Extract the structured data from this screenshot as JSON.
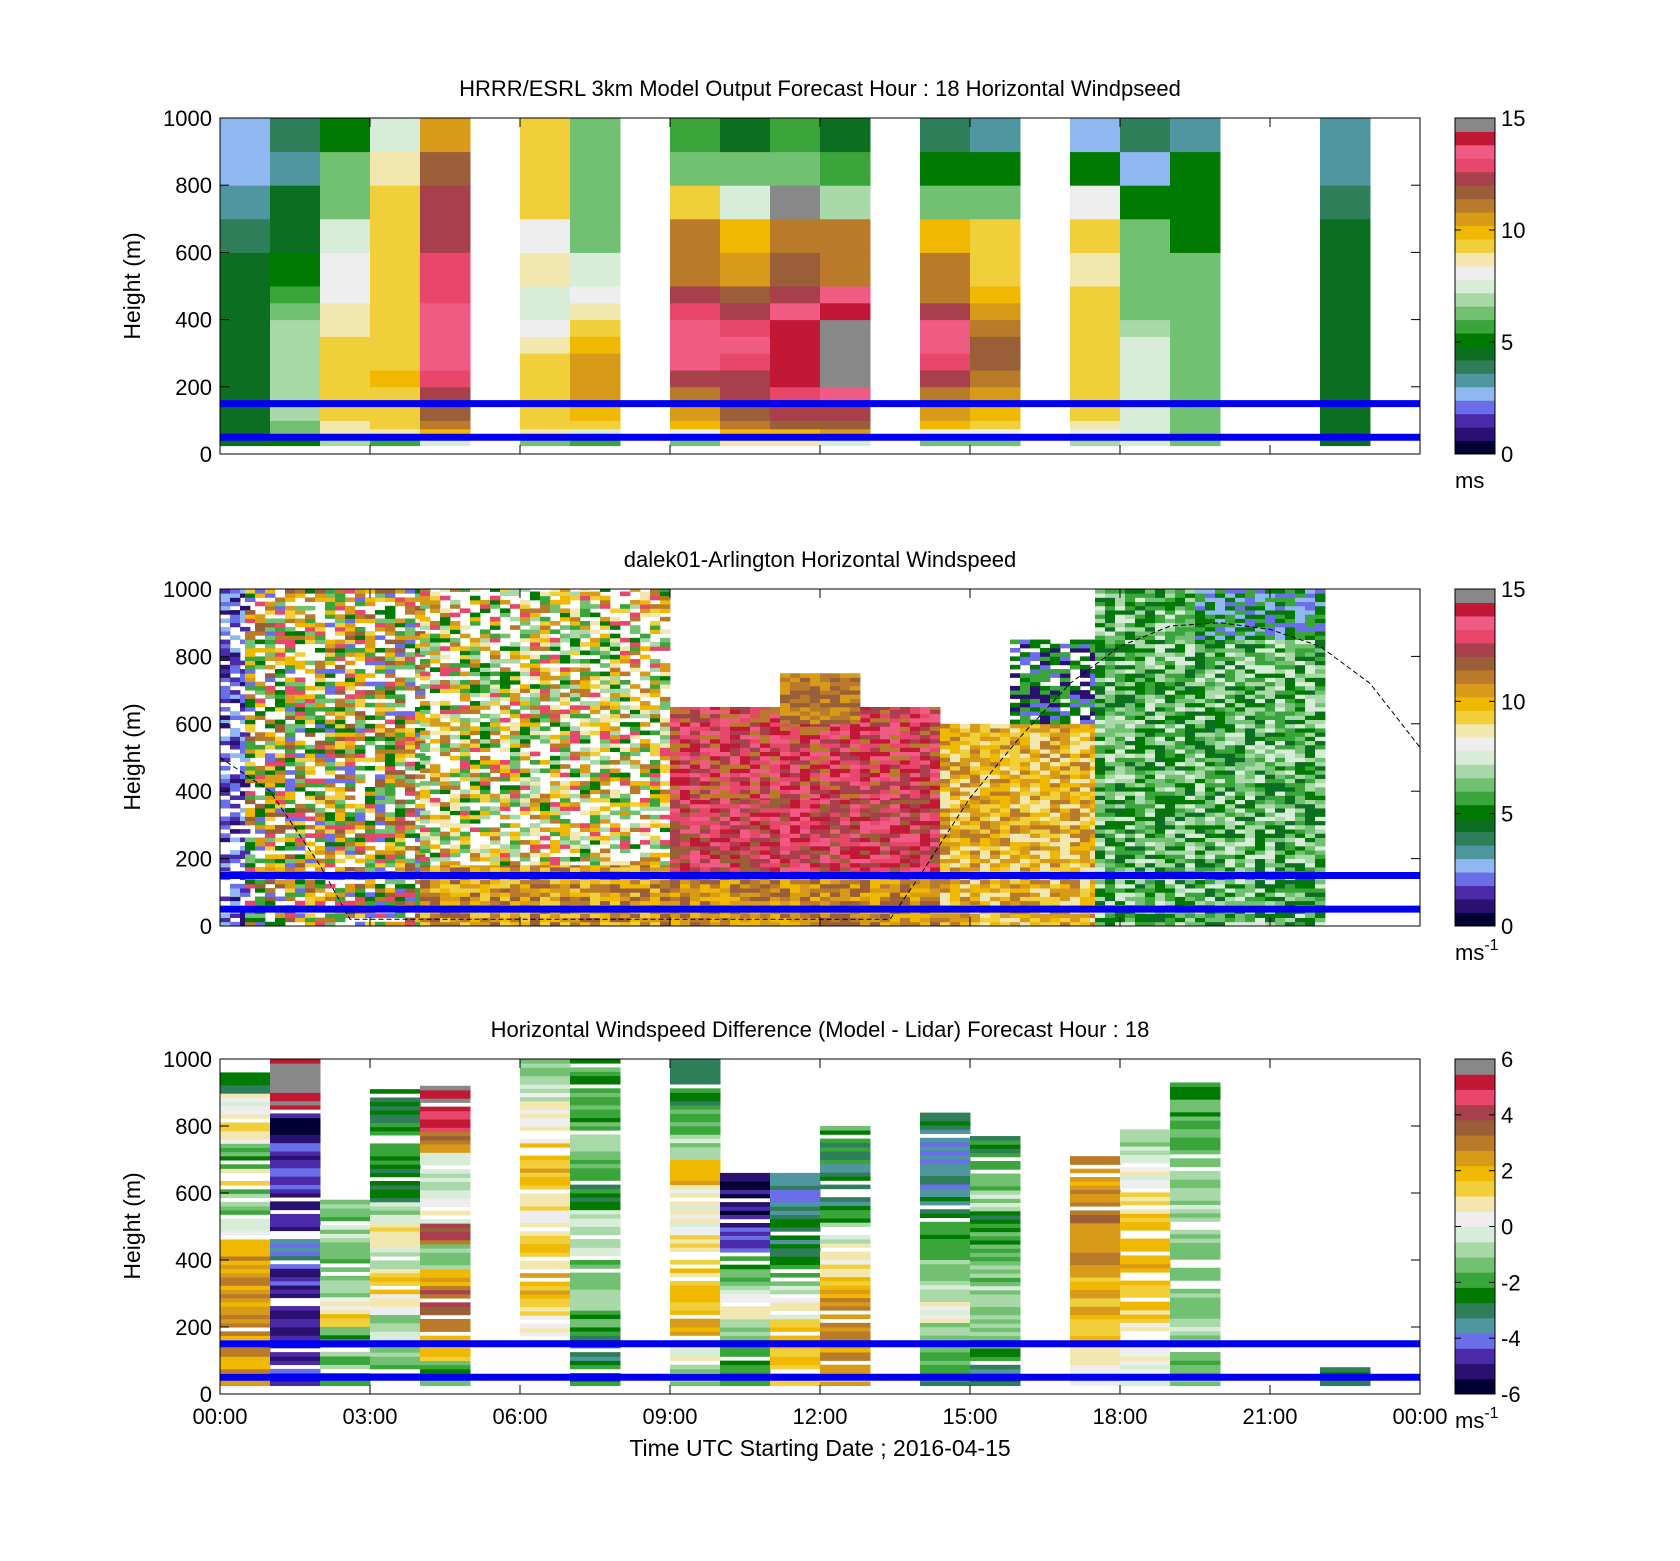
{
  "figure": {
    "x_axis_label": "Time UTC  Starting Date ; 2016-04-15",
    "x_tick_labels": [
      "00:00",
      "03:00",
      "06:00",
      "09:00",
      "12:00",
      "15:00",
      "18:00",
      "21:00",
      "00:00"
    ]
  },
  "colors": {
    "reference_lines": "#0000ee",
    "speed_colormap": [
      "#000033",
      "#2a1070",
      "#4b2aa8",
      "#6a6ee8",
      "#8fb8f0",
      "#4f96a0",
      "#2f7e5a",
      "#0b6e20",
      "#007a00",
      "#3aa53a",
      "#72c072",
      "#a9d9a9",
      "#d8edd8",
      "#eeeeee",
      "#f3e7b0",
      "#f1cf3a",
      "#f0b800",
      "#d79b19",
      "#b97b2a",
      "#9a5e38",
      "#a7404a",
      "#e8466b",
      "#ef5b82",
      "#c21836",
      "#888888"
    ],
    "difference_colormap": [
      "#000033",
      "#2a1070",
      "#4b2aa8",
      "#6a6ee8",
      "#4f96a0",
      "#2f7e5a",
      "#007a00",
      "#3aa53a",
      "#72c072",
      "#a9d9a9",
      "#d8edd8",
      "#eeeeee",
      "#f3e7b0",
      "#f1cf3a",
      "#f0b800",
      "#d79b19",
      "#b97b2a",
      "#9a5e38",
      "#a7404a",
      "#e8466b",
      "#c21836",
      "#888888"
    ]
  },
  "chart_data": [
    {
      "type": "heatmap",
      "title": "HRRR/ESRL 3km Model Output   Forecast Hour : 18 Horizontal Windpseed",
      "xlabel": "",
      "ylabel": "Height (m)",
      "xlim": [
        0,
        24
      ],
      "ylim": [
        0,
        1000
      ],
      "y_ticks": [
        0,
        200,
        400,
        600,
        800,
        1000
      ],
      "colorbar": {
        "ticks": [
          "0",
          "5",
          "10",
          "15"
        ],
        "range": [
          0,
          15
        ],
        "unit_label": "ms",
        "unit_superscript": "",
        "colormap": "speed"
      },
      "reference_lines_m": [
        50,
        150
      ],
      "columns_hour": [
        0,
        1,
        2,
        3,
        4,
        6,
        7,
        9,
        10,
        11,
        12,
        14,
        15,
        17,
        18,
        19,
        22
      ],
      "levels_m": [
        25,
        50,
        75,
        100,
        150,
        200,
        250,
        300,
        350,
        400,
        450,
        500,
        600,
        700,
        800,
        900
      ],
      "values": [
        [
          4.5,
          4.5,
          4.5,
          4.5,
          4.5,
          4.5,
          4.5,
          4.5,
          4.5,
          4.6,
          4.5,
          4.4,
          3.9,
          3.3,
          2.7,
          2.4
        ],
        [
          5.2,
          6.0,
          6.5,
          6.8,
          7.0,
          7.0,
          7.0,
          7.0,
          7.0,
          6.5,
          5.6,
          4.9,
          4.5,
          4.5,
          3.2,
          3.6
        ],
        [
          7.0,
          8.5,
          9.0,
          9.1,
          9.3,
          9.5,
          9.5,
          9.5,
          9.0,
          8.5,
          8.0,
          8.0,
          7.5,
          6.5,
          6.0,
          5.0
        ],
        [
          5.9,
          8.6,
          9.5,
          9.6,
          9.6,
          9.7,
          9.5,
          9.4,
          9.5,
          9.6,
          9.5,
          9.4,
          9.6,
          9.2,
          8.5,
          7.5
        ],
        [
          7.5,
          10.0,
          11.0,
          11.8,
          12.6,
          13.3,
          14.0,
          13.9,
          13.8,
          13.6,
          13.3,
          13.0,
          12.7,
          12.4,
          12.0,
          10.7
        ],
        [
          6.5,
          8.5,
          9.5,
          9.4,
          9.3,
          9.3,
          9.2,
          8.8,
          8.2,
          7.5,
          7.8,
          8.5,
          8.0,
          9.1,
          9.3,
          9.1
        ],
        [
          5.5,
          7.5,
          9.4,
          9.9,
          10.5,
          10.6,
          10.5,
          10.3,
          9.1,
          8.6,
          7.9,
          7.4,
          6.5,
          6.0,
          6.0,
          6.0
        ],
        [
          6.5,
          8.0,
          9.9,
          10.6,
          11.5,
          12.6,
          13.6,
          13.7,
          13.6,
          13.4,
          12.5,
          11.5,
          11.0,
          9.5,
          6.5,
          5.6
        ],
        [
          8.5,
          10.2,
          11.0,
          12.0,
          12.3,
          12.5,
          13.0,
          13.5,
          13.4,
          12.5,
          11.6,
          10.7,
          10.2,
          7.8,
          6.2,
          4.6
        ],
        [
          8.9,
          10.3,
          11.8,
          12.4,
          13.2,
          14.1,
          14.5,
          14.5,
          14.5,
          13.6,
          12.7,
          11.8,
          11.5,
          14.9,
          6.0,
          5.6
        ],
        [
          7.5,
          10.5,
          12.0,
          12.8,
          13.5,
          14.8,
          14.8,
          14.9,
          14.9,
          14.4,
          13.9,
          11.5,
          11.0,
          7.0,
          5.5,
          4.6
        ],
        [
          6.5,
          8.3,
          9.9,
          10.8,
          11.5,
          12.4,
          13.3,
          13.6,
          13.5,
          12.5,
          11.4,
          11.0,
          10.0,
          6.5,
          4.9,
          3.7
        ],
        [
          6.5,
          8.1,
          9.2,
          10.0,
          10.8,
          11.2,
          11.6,
          11.6,
          11.2,
          10.6,
          10.0,
          9.6,
          9.6,
          6.2,
          5.0,
          3.2
        ],
        [
          7.0,
          8.3,
          8.9,
          9.3,
          9.5,
          9.5,
          9.5,
          9.6,
          9.6,
          9.5,
          9.2,
          9.0,
          9.4,
          8.0,
          5.3,
          2.6
        ],
        [
          7.3,
          7.5,
          7.5,
          7.5,
          7.5,
          7.6,
          7.5,
          7.3,
          7.0,
          6.5,
          6.2,
          6.0,
          6.0,
          5.0,
          2.8,
          3.8
        ],
        [
          6.0,
          6.5,
          6.5,
          6.5,
          6.5,
          6.5,
          6.3,
          6.0,
          6.0,
          6.0,
          6.0,
          6.0,
          5.0,
          5.0,
          5.0,
          3.2
        ],
        [
          4.5,
          4.5,
          4.5,
          4.5,
          4.5,
          4.5,
          4.5,
          4.5,
          4.5,
          4.5,
          4.5,
          4.5,
          4.4,
          4.0,
          3.3,
          3.0
        ]
      ]
    },
    {
      "type": "heatmap",
      "title": "dalek01-Arlington  Horizontal Windspeed",
      "xlabel": "",
      "ylabel": "Height (m)",
      "xlim": [
        0,
        24
      ],
      "ylim": [
        0,
        1000
      ],
      "y_ticks": [
        0,
        200,
        400,
        600,
        800,
        1000
      ],
      "colorbar": {
        "ticks": [
          "0",
          "5",
          "10",
          "15"
        ],
        "range": [
          0,
          15
        ],
        "unit_label": "ms",
        "unit_superscript": "-1",
        "colormap": "speed"
      },
      "reference_lines_m": [
        50,
        150
      ],
      "dashed_curve": [
        [
          0,
          500
        ],
        [
          1,
          400
        ],
        [
          2,
          180
        ],
        [
          2.6,
          20
        ],
        [
          13.4,
          20
        ],
        [
          14,
          150
        ],
        [
          15,
          380
        ],
        [
          16,
          560
        ],
        [
          17,
          720
        ],
        [
          18,
          830
        ],
        [
          19,
          890
        ],
        [
          20,
          900
        ],
        [
          21,
          880
        ],
        [
          22,
          830
        ],
        [
          23,
          720
        ],
        [
          24,
          530
        ]
      ],
      "data_extent_hours": [
        0,
        22
      ],
      "hour_ranges": [
        {
          "hours": [
            0.0,
            0.5
          ],
          "bottom_m": 0,
          "top_m": 1000,
          "color_mix": [
            "#2a1070",
            "#4b2aa8",
            "#6a6ee8",
            "#8fb8f0",
            "#ffffff",
            "#ffffff"
          ]
        },
        {
          "hours": [
            0.5,
            4.0
          ],
          "bottom_m": 0,
          "top_m": 1000,
          "color_mix": [
            "#ffffff",
            "#ffffff",
            "#ffffff",
            "#b97b2a",
            "#9a5e38",
            "#d79b19",
            "#f0b800",
            "#f1cf3a",
            "#3aa53a",
            "#72c072",
            "#007a00",
            "#e8466b",
            "#6a6ee8"
          ]
        },
        {
          "hours": [
            4.0,
            9.0
          ],
          "bottom_m": 180,
          "top_m": 1000,
          "color_mix": [
            "#ffffff",
            "#ffffff",
            "#ffffff",
            "#ffffff",
            "#ffffff",
            "#f0b800",
            "#f1cf3a",
            "#f3e7b0",
            "#d79b19",
            "#3aa53a",
            "#72c072",
            "#007a00",
            "#b97b2a",
            "#e8466b",
            "#a9d9a9"
          ]
        },
        {
          "hours": [
            4.0,
            9.0
          ],
          "bottom_m": 0,
          "top_m": 180,
          "color_mix": [
            "#d79b19",
            "#b97b2a",
            "#f0b800",
            "#9a5e38",
            "#f1cf3a"
          ]
        },
        {
          "hours": [
            8.8,
            14.4
          ],
          "bottom_m": 0,
          "top_m": 150,
          "color_mix": [
            "#d79b19",
            "#b97b2a",
            "#f0b800",
            "#9a5e38"
          ]
        },
        {
          "hours": [
            9.0,
            14.4
          ],
          "bottom_m": 150,
          "top_m": 380,
          "color_mix": [
            "#e8466b",
            "#ef5b82",
            "#c21836",
            "#a7404a",
            "#9a5e38"
          ]
        },
        {
          "hours": [
            9.0,
            14.4
          ],
          "bottom_m": 380,
          "top_m": 650,
          "color_mix": [
            "#ef5b82",
            "#e8466b",
            "#c21836",
            "#a7404a",
            "#b97b2a"
          ]
        },
        {
          "hours": [
            11.2,
            12.8
          ],
          "bottom_m": 600,
          "top_m": 750,
          "color_mix": [
            "#b97b2a",
            "#9a5e38",
            "#d79b19"
          ]
        },
        {
          "hours": [
            14.4,
            17.5
          ],
          "bottom_m": 0,
          "top_m": 600,
          "color_mix": [
            "#f0b800",
            "#d79b19",
            "#f1cf3a",
            "#b97b2a",
            "#f3e7b0"
          ]
        },
        {
          "hours": [
            15.8,
            17.5
          ],
          "bottom_m": 600,
          "top_m": 850,
          "color_mix": [
            "#007a00",
            "#3aa53a",
            "#6a6ee8",
            "#2a1070",
            "#ffffff"
          ]
        },
        {
          "hours": [
            17.5,
            22.0
          ],
          "bottom_m": 0,
          "top_m": 1000,
          "color_mix": [
            "#007a00",
            "#3aa53a",
            "#72c072",
            "#a9d9a9",
            "#d8edd8",
            "#0b6e20"
          ]
        },
        {
          "hours": [
            19.5,
            22.0
          ],
          "bottom_m": 850,
          "top_m": 1000,
          "color_mix": [
            "#6a6ee8",
            "#8fb8f0",
            "#007a00",
            "#3aa53a"
          ]
        }
      ]
    },
    {
      "type": "heatmap",
      "title": "Horizontal Windspeed Difference (Model - Lidar) Forecast Hour : 18",
      "xlabel": "Time UTC  Starting Date ; 2016-04-15",
      "ylabel": "Height (m)",
      "xlim": [
        0,
        24
      ],
      "ylim": [
        0,
        1000
      ],
      "y_ticks": [
        0,
        200,
        400,
        600,
        800,
        1000
      ],
      "colorbar": {
        "ticks": [
          "-6",
          "-4",
          "-2",
          "0",
          "2",
          "4",
          "6"
        ],
        "range": [
          -6,
          6
        ],
        "unit_label": "ms",
        "unit_superscript": "-1",
        "colormap": "difference"
      },
      "reference_lines_m": [
        50,
        150
      ],
      "columns_hour": [
        0,
        1,
        2,
        3,
        4,
        6,
        7,
        9,
        10,
        11,
        12,
        14,
        15,
        17,
        18,
        19,
        22
      ],
      "column_ranges_m": [
        [
          25,
          960
        ],
        [
          25,
          1000
        ],
        [
          25,
          580
        ],
        [
          25,
          910
        ],
        [
          25,
          920
        ],
        [
          160,
          1000
        ],
        [
          25,
          1000
        ],
        [
          25,
          1000
        ],
        [
          25,
          660
        ],
        [
          25,
          660
        ],
        [
          25,
          800
        ],
        [
          25,
          840
        ],
        [
          25,
          770
        ],
        [
          25,
          710
        ],
        [
          25,
          790
        ],
        [
          25,
          930
        ],
        [
          25,
          80
        ]
      ],
      "values": [
        [
          2.5,
          2.8,
          2.6,
          2.7,
          2.5,
          2.3,
          -0.5,
          -1.5,
          1.5,
          -2.0,
          1.0,
          0.5,
          -2.5
        ],
        [
          -5.0,
          -5.2,
          -5.3,
          -5.1,
          -5.0,
          -4.0,
          -5.3,
          -5.0,
          -4.5,
          -4.8,
          -5.5,
          6.0,
          6.0
        ],
        [
          -1.5,
          -1.5,
          -1.0,
          -2.0,
          1.5,
          1.0,
          -1.0,
          -1.0,
          -2.0,
          -1.5,
          -1.0,
          -1.5,
          -1.0
        ],
        [
          -2.0,
          -1.0,
          -1.0,
          0.5,
          1.5,
          -0.5,
          1.0,
          -1.0,
          -3.0,
          -2.5,
          -2.0,
          -2.8,
          -3.0
        ],
        [
          -2.0,
          2.0,
          3.0,
          3.5,
          2.5,
          -1.0,
          4.0,
          0.5,
          -0.5,
          -0.5,
          3.0,
          5.0,
          6.0
        ],
        [
          0.5,
          1.5,
          2.0,
          1.0,
          1.5,
          0.5,
          1.0,
          2.0,
          1.5,
          1.0,
          0.5,
          -0.5,
          -1.0
        ],
        [
          -2.5,
          -3.0,
          -2.0,
          -1.0,
          -1.5,
          -0.5,
          -1.0,
          -2.5,
          -1.5,
          -1.0,
          -2.0,
          -1.5,
          -2.0
        ],
        [
          -1.0,
          0.5,
          2.5,
          2.0,
          1.5,
          1.0,
          0.5,
          0.5,
          2.0,
          -1.0,
          -2.0,
          -2.5,
          -3.0
        ],
        [
          -2.5,
          -2.0,
          -1.5,
          -1.0,
          0.5,
          -0.5,
          -1.5,
          -2.5,
          -4.5,
          -5.0,
          -5.3,
          -5.5,
          -5.6
        ],
        [
          1.5,
          1.8,
          2.0,
          1.5,
          0.5,
          -0.5,
          -1.5,
          -2.5,
          -3.0,
          -2.8,
          -3.5,
          -4.0,
          -4.2
        ],
        [
          2.5,
          2.5,
          2.8,
          2.7,
          2.5,
          1.5,
          0.5,
          -0.5,
          -2.0,
          -3.0,
          -3.0,
          -2.5,
          -2.0
        ],
        [
          -2.5,
          -1.5,
          -1.0,
          0.5,
          -0.5,
          -1.0,
          -2.0,
          -2.5,
          -3.0,
          -3.5,
          -4.0,
          -4.5,
          -3.0
        ],
        [
          -3.0,
          -2.0,
          -1.5,
          -1.0,
          -1.0,
          -1.5,
          -1.5,
          -2.0,
          -2.5,
          -1.0,
          -1.5,
          -2.0,
          -2.5
        ],
        [
          0.5,
          1.0,
          1.5,
          1.8,
          2.0,
          2.2,
          2.5,
          2.8,
          3.0,
          3.2,
          3.0,
          2.8,
          3.0
        ],
        [
          0.0,
          0.5,
          1.0,
          1.5,
          1.5,
          1.8,
          2.0,
          1.8,
          1.5,
          1.0,
          0.5,
          -0.5,
          -1.0
        ],
        [
          -1.5,
          -1.0,
          -1.0,
          -1.5,
          -1.2,
          -1.0,
          -1.0,
          -0.8,
          -1.0,
          -1.2,
          -1.5,
          -2.0,
          -2.0
        ],
        [
          -3.0,
          -3.0,
          -3.0,
          -3.0,
          -3.0,
          -3.0,
          -3.0,
          -3.0,
          -3.0,
          -3.0,
          -3.0,
          -3.0,
          -3.0
        ]
      ]
    }
  ]
}
